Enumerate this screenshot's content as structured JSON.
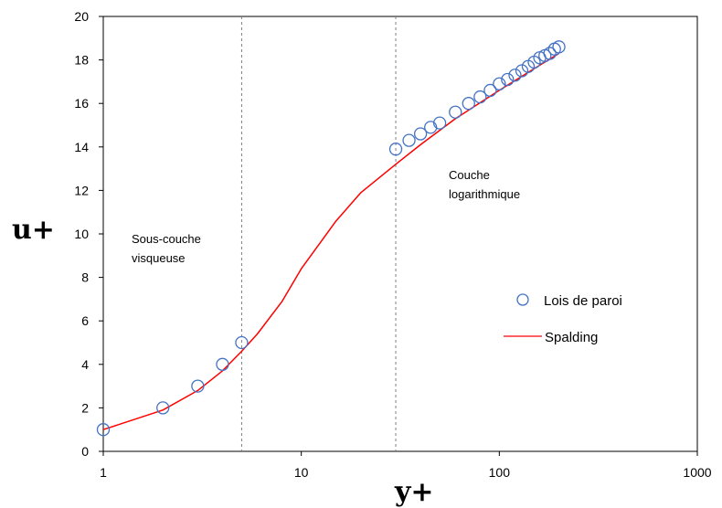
{
  "chart_data": {
    "type": "scatter",
    "xlabel": "y+",
    "ylabel": "u+",
    "xscale": "log",
    "xlim": [
      1,
      1000
    ],
    "ylim": [
      0,
      20
    ],
    "x_ticks": [
      "1",
      "10",
      "100",
      "1000"
    ],
    "y_ticks": [
      "0",
      "2",
      "4",
      "6",
      "8",
      "10",
      "12",
      "14",
      "16",
      "18",
      "20"
    ],
    "grid": false,
    "legend_position": "right",
    "series": [
      {
        "name": "Lois de paroi",
        "kind": "markers",
        "color": "#4472C4",
        "x": [
          1,
          2,
          3,
          4,
          5,
          30,
          35,
          40,
          45,
          50,
          60,
          70,
          80,
          90,
          100,
          110,
          120,
          130,
          140,
          150,
          160,
          170,
          180,
          190,
          200
        ],
        "y": [
          1.0,
          2.0,
          3.0,
          4.0,
          5.0,
          13.9,
          14.3,
          14.6,
          14.9,
          15.1,
          15.6,
          16.0,
          16.3,
          16.6,
          16.9,
          17.1,
          17.3,
          17.5,
          17.7,
          17.9,
          18.1,
          18.2,
          18.3,
          18.5,
          18.6
        ]
      },
      {
        "name": "Spalding",
        "kind": "line",
        "color": "#FF0000",
        "x": [
          1,
          2,
          3,
          4,
          5,
          6,
          8,
          10,
          15,
          20,
          30,
          40,
          60,
          100,
          150,
          200
        ],
        "y": [
          1.0,
          1.9,
          2.8,
          3.7,
          4.6,
          5.4,
          6.9,
          8.4,
          10.6,
          11.9,
          13.2,
          14.1,
          15.3,
          16.6,
          17.6,
          18.3
        ]
      }
    ],
    "vlines": [
      5,
      30
    ],
    "annotations": [
      {
        "id": "viscous-sublayer",
        "lines": [
          "Sous-couche",
          "visqueuse"
        ]
      },
      {
        "id": "log-layer",
        "lines": [
          "Couche",
          "logarithmique"
        ]
      }
    ]
  }
}
